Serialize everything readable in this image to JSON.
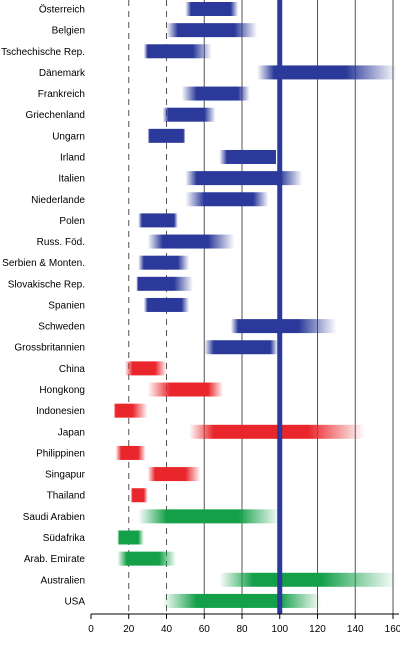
{
  "chart_data": {
    "type": "bar",
    "subtype": "floating-range-with-fading-ends",
    "title": "",
    "xlabel": "",
    "ylabel": "",
    "xlim": [
      0,
      165
    ],
    "x_ticks": [
      0,
      20,
      40,
      60,
      80,
      100,
      120,
      140,
      160
    ],
    "dashed_gridlines": [
      20,
      40
    ],
    "solid_gridlines": [
      60,
      80,
      100,
      120,
      140,
      160
    ],
    "reference_line": 100,
    "grid": true,
    "legend": "none",
    "colors": {
      "europe": "#2b3a9a",
      "asia": "#e8262b",
      "other": "#13a049",
      "reference": "#2b3a9a",
      "grid": "#555555"
    },
    "rows": [
      {
        "label": "Österreich",
        "group": "europe",
        "range": [
          50,
          78
        ],
        "core": [
          53,
          74
        ]
      },
      {
        "label": "Belgien",
        "group": "europe",
        "range": [
          40,
          88
        ],
        "core": [
          46,
          76
        ]
      },
      {
        "label": "Tschechische Rep.",
        "group": "europe",
        "range": [
          28,
          64
        ],
        "core": [
          30,
          54
        ]
      },
      {
        "label": "Dänemark",
        "group": "europe",
        "range": [
          88,
          162
        ],
        "core": [
          97,
          135
        ]
      },
      {
        "label": "Frankreich",
        "group": "europe",
        "range": [
          48,
          84
        ],
        "core": [
          56,
          78
        ]
      },
      {
        "label": "Griechenland",
        "group": "europe",
        "range": [
          38,
          66
        ],
        "core": [
          41,
          60
        ]
      },
      {
        "label": "Ungarn",
        "group": "europe",
        "range": [
          30,
          50
        ],
        "core": [
          31,
          49
        ]
      },
      {
        "label": "Irland",
        "group": "europe",
        "range": [
          68,
          98
        ],
        "core": [
          72,
          98
        ]
      },
      {
        "label": "Italien",
        "group": "europe",
        "range": [
          50,
          112
        ],
        "core": [
          56,
          100
        ]
      },
      {
        "label": "Niederlande",
        "group": "europe",
        "range": [
          50,
          94
        ],
        "core": [
          60,
          86
        ]
      },
      {
        "label": "Polen",
        "group": "europe",
        "range": [
          25,
          46
        ],
        "core": [
          27,
          44
        ]
      },
      {
        "label": "Russ. Föd.",
        "group": "europe",
        "range": [
          30,
          76
        ],
        "core": [
          38,
          62
        ]
      },
      {
        "label": "Serbien & Monten.",
        "group": "europe",
        "range": [
          25,
          52
        ],
        "core": [
          28,
          46
        ]
      },
      {
        "label": "Slovakische Rep.",
        "group": "europe",
        "range": [
          24,
          54
        ],
        "core": [
          25,
          44
        ]
      },
      {
        "label": "Spanien",
        "group": "europe",
        "range": [
          28,
          52
        ],
        "core": [
          30,
          48
        ]
      },
      {
        "label": "Schweden",
        "group": "europe",
        "range": [
          74,
          130
        ],
        "core": [
          78,
          110
        ]
      },
      {
        "label": "Grossbritannien",
        "group": "europe",
        "range": [
          60,
          99
        ],
        "core": [
          65,
          95
        ]
      },
      {
        "label": "China",
        "group": "asia",
        "range": [
          18,
          40
        ],
        "core": [
          22,
          34
        ]
      },
      {
        "label": "Hongkong",
        "group": "asia",
        "range": [
          30,
          70
        ],
        "core": [
          42,
          62
        ]
      },
      {
        "label": "Indonesien",
        "group": "asia",
        "range": [
          12,
          30
        ],
        "core": [
          13,
          22
        ]
      },
      {
        "label": "Japan",
        "group": "asia",
        "range": [
          52,
          145
        ],
        "core": [
          65,
          115
        ]
      },
      {
        "label": "Philippinen",
        "group": "asia",
        "range": [
          13,
          29
        ],
        "core": [
          16,
          25
        ]
      },
      {
        "label": "Singapur",
        "group": "asia",
        "range": [
          30,
          58
        ],
        "core": [
          34,
          50
        ]
      },
      {
        "label": "Thailand",
        "group": "asia",
        "range": [
          21,
          30
        ],
        "core": [
          22,
          28
        ]
      },
      {
        "label": "Saudi Arabien",
        "group": "other",
        "range": [
          25,
          100
        ],
        "core": [
          40,
          78
        ]
      },
      {
        "label": "Südafrika",
        "group": "other",
        "range": [
          14,
          28
        ],
        "core": [
          15,
          25
        ]
      },
      {
        "label": "Arab. Emirate",
        "group": "other",
        "range": [
          14,
          45
        ],
        "core": [
          19,
          36
        ]
      },
      {
        "label": "Australien",
        "group": "other",
        "range": [
          68,
          162
        ],
        "core": [
          86,
          122
        ]
      },
      {
        "label": "USA",
        "group": "other",
        "range": [
          38,
          122
        ],
        "core": [
          56,
          100
        ]
      }
    ]
  }
}
